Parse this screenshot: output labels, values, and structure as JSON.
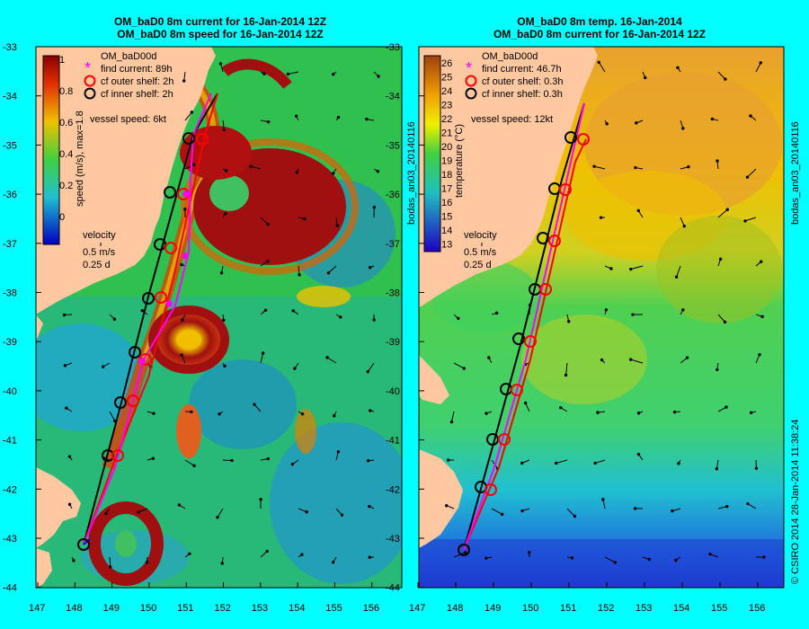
{
  "left_panel": {
    "title_line1": "OM_baD0 8m current for 16-Jan-2014 12Z",
    "title_line2": "OM_baD0 8m speed for 16-Jan-2014 12Z",
    "model_name": "OM_baD00d",
    "legend": [
      {
        "marker": "star",
        "color": "#ff00ff",
        "label": "find current: 89h"
      },
      {
        "marker": "circle",
        "color": "#ff0000",
        "label": "cf outer shelf: 2h"
      },
      {
        "marker": "circle",
        "color": "#000000",
        "label": "cf inner shelf: 2h"
      }
    ],
    "vessel_speed": "vessel speed: 6kt",
    "colorbar_label": "speed (m/s), max=1.8",
    "colorbar_ticks": [
      "1",
      "0.8",
      "0.6",
      "0.4",
      "0.2",
      "0"
    ],
    "velocity_label": "velocity",
    "velocity_scale_1": "0.5 m/s",
    "velocity_scale_2": "0.25 d",
    "side_label": "bodas_an03_20140116"
  },
  "right_panel": {
    "title_line1": "OM_baD0 8m temp. 16-Jan-2014",
    "title_line2": "OM_baD0 8m current for 16-Jan-2014 12Z",
    "model_name": "OM_baD00d",
    "legend": [
      {
        "marker": "star",
        "color": "#ff00ff",
        "label": "find current: 46.7h"
      },
      {
        "marker": "circle",
        "color": "#ff0000",
        "label": "cf outer shelf: 0.3h"
      },
      {
        "marker": "circle",
        "color": "#000000",
        "label": "cf inner shelf: 0.3h"
      }
    ],
    "vessel_speed": "vessel speed: 12kt",
    "colorbar_label": "temperature (°C)",
    "colorbar_ticks": [
      "26",
      "25",
      "24",
      "23",
      "22",
      "21",
      "20",
      "19",
      "18",
      "17",
      "16",
      "15",
      "14",
      "13"
    ],
    "velocity_label": "velocity",
    "velocity_scale_1": "0.5 m/s",
    "velocity_scale_2": "0.25 d",
    "side_label_top": "bodas_an03_20140116",
    "side_label_bottom": "© CSIRO 2014   28-Jan-2014 11:38:24"
  },
  "axes": {
    "lat_ticks": [
      "-33",
      "-34",
      "-35",
      "-36",
      "-37",
      "-38",
      "-39",
      "-40",
      "-41",
      "-42",
      "-43",
      "-44"
    ],
    "lon_ticks": [
      "147",
      "148",
      "149",
      "150",
      "151",
      "152",
      "153",
      "154",
      "155",
      "156"
    ]
  },
  "colors": {
    "background": "#00ffff",
    "land": "#ffc8a0",
    "route_black": "#000000",
    "route_red": "#ff0000",
    "route_magenta": "#ff00ff"
  }
}
